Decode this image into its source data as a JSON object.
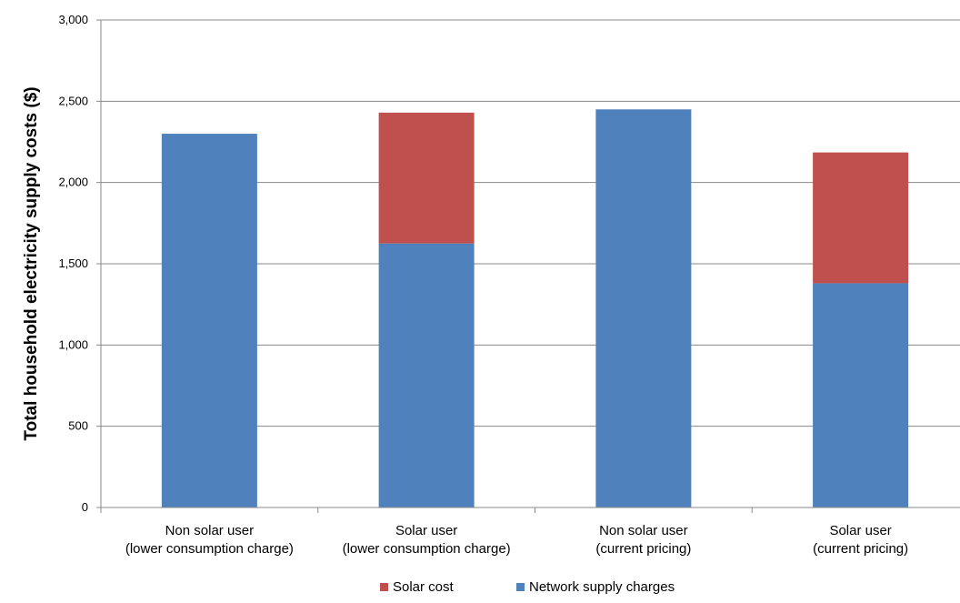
{
  "chart_data": {
    "type": "bar",
    "stacked": true,
    "title": "",
    "xlabel": "",
    "ylabel": "Total household electricity supply costs ($)",
    "ylim": [
      0,
      3000
    ],
    "yticks": [
      0,
      500,
      1000,
      1500,
      2000,
      2500,
      3000
    ],
    "ytick_labels": [
      "0",
      "500",
      "1,000",
      "1,500",
      "2,000",
      "2,500",
      "3,000"
    ],
    "grid": true,
    "legend_position": "bottom",
    "categories": [
      [
        "Non solar user",
        "(lower consumption charge)"
      ],
      [
        "Solar user",
        "(lower consumption charge)"
      ],
      [
        "Non solar user",
        "(current pricing)"
      ],
      [
        "Solar user",
        "(current pricing)"
      ]
    ],
    "series": [
      {
        "name": "Network supply charges",
        "color": "#4f81bd",
        "values": [
          2300,
          1625,
          2450,
          1380
        ]
      },
      {
        "name": "Solar cost",
        "color": "#c0504d",
        "values": [
          0,
          805,
          0,
          805
        ]
      }
    ],
    "legend_order": [
      1,
      0
    ]
  }
}
